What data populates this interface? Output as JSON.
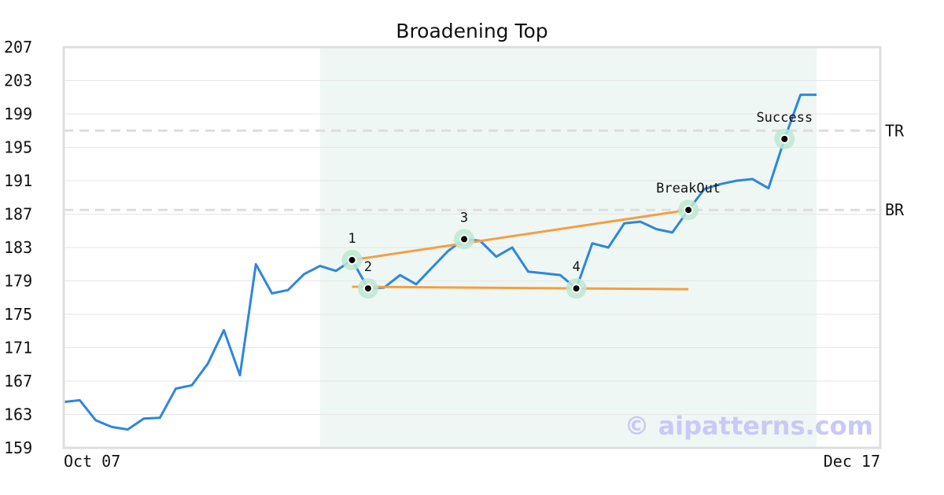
{
  "chart_data": {
    "type": "line",
    "title": "Broadening Top",
    "xlabel": "",
    "ylabel": "",
    "ylim": [
      159,
      207
    ],
    "y_ticks": [
      207,
      203,
      199,
      195,
      191,
      187,
      183,
      179,
      175,
      171,
      167,
      163,
      159
    ],
    "x_tick_labels": {
      "first": "Oct 07",
      "last": "Dec 17"
    },
    "grid": "horizontal",
    "series": [
      {
        "color": "#2e86de",
        "values": [
          164.5,
          164.7,
          162.3,
          161.5,
          161.2,
          162.5,
          162.6,
          166.1,
          166.5,
          169.1,
          173.1,
          167.7,
          181.0,
          177.5,
          177.9,
          179.8,
          180.8,
          180.2,
          181.5,
          178.1,
          178.2,
          179.7,
          178.6,
          180.6,
          182.6,
          184.0,
          183.8,
          181.9,
          183.0,
          180.1,
          179.9,
          179.7,
          178.1,
          183.5,
          183.0,
          185.9,
          186.1,
          185.2,
          184.8,
          187.5,
          190.0,
          190.6,
          191.0,
          191.2,
          190.1,
          196.0,
          201.3,
          201.3
        ]
      }
    ],
    "highlight_region": {
      "start_index": 16,
      "end_index": 47,
      "color": "#eef7f3"
    },
    "reference_lines": [
      {
        "label": "TR",
        "value": 197.0
      },
      {
        "label": "BR",
        "value": 187.5
      }
    ],
    "trend_lines": [
      {
        "from": {
          "index": 18,
          "value": 181.5
        },
        "to": {
          "index": 39,
          "value": 187.5
        },
        "color": "#f59e42"
      },
      {
        "from": {
          "index": 18,
          "value": 178.3
        },
        "to": {
          "index": 39,
          "value": 178.0
        },
        "color": "#f59e42"
      }
    ],
    "points": [
      {
        "label": "1",
        "index": 18,
        "value": 181.5
      },
      {
        "label": "2",
        "index": 19,
        "value": 178.1
      },
      {
        "label": "3",
        "index": 25,
        "value": 184.0
      },
      {
        "label": "4",
        "index": 32,
        "value": 178.1
      },
      {
        "label": "BreakOut",
        "index": 39,
        "value": 187.5
      },
      {
        "label": "Success",
        "index": 45,
        "value": 196.0
      }
    ],
    "watermark": "© aipatterns.com",
    "colors": {
      "line": "#2e86de",
      "trend": "#f59e42",
      "region": "#eef7f3",
      "halo": "#bde8d2",
      "marker": "#000000",
      "ref": "#dddddd",
      "frame": "#dddddd"
    }
  }
}
